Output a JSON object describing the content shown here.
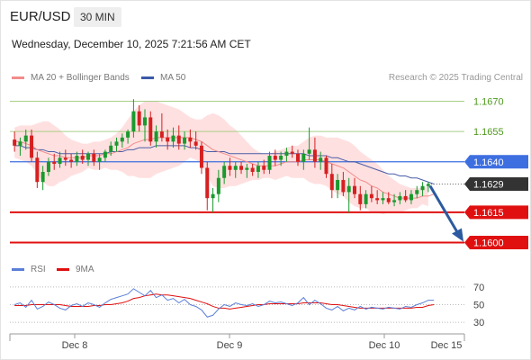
{
  "header": {
    "pair": "EUR/USD",
    "timeframe": "30 MIN",
    "date": "Wednesday, December 10, 2025 7:21:56 AM CET"
  },
  "legend": {
    "ma20": "MA 20 + Bollinger Bands",
    "ma50": "MA 50",
    "credit": "Research © 2025 Trading Central",
    "rsi": "RSI",
    "ma9": "9MA"
  },
  "colors": {
    "bull": "#1a9a2e",
    "bear": "#d62020",
    "ma20": "#f28b8b",
    "ma50": "#4a5ea8",
    "band": "#ffd6d6",
    "green_level": "#a7cf86",
    "blue_level": "#3d6fe0",
    "red_level": "#e01010",
    "current": "#333333",
    "arrow": "#2c5aa0",
    "rsi": "#5b7fd6",
    "rsi_ma": "#e01010"
  },
  "chart_data": [
    {
      "type": "candlestick",
      "title": "EUR/USD 30 MIN",
      "ylim": [
        1.1594,
        1.1676
      ],
      "x_ticks": [
        "Dec 8",
        "Dec 9",
        "Dec 10",
        "Dec 15"
      ],
      "levels": [
        {
          "price": 1.167,
          "label": "1.1670",
          "kind": "resistance-green"
        },
        {
          "price": 1.1655,
          "label": "1.1655",
          "kind": "resistance-green"
        },
        {
          "price": 1.164,
          "label": "1.1640",
          "kind": "pivot-blue"
        },
        {
          "price": 1.1629,
          "label": "1.1629",
          "kind": "current"
        },
        {
          "price": 1.1615,
          "label": "1.1615",
          "kind": "support-red"
        },
        {
          "price": 1.16,
          "label": "1.1600",
          "kind": "support-red"
        }
      ],
      "forecast": {
        "from": 1.1629,
        "to": 1.16
      },
      "candles": [
        {
          "o": 1.1651,
          "h": 1.1655,
          "l": 1.1645,
          "c": 1.1648
        },
        {
          "o": 1.1648,
          "h": 1.1652,
          "l": 1.1643,
          "c": 1.165
        },
        {
          "o": 1.165,
          "h": 1.1656,
          "l": 1.1646,
          "c": 1.1653
        },
        {
          "o": 1.1653,
          "h": 1.1656,
          "l": 1.164,
          "c": 1.1642
        },
        {
          "o": 1.1642,
          "h": 1.1645,
          "l": 1.1627,
          "c": 1.163
        },
        {
          "o": 1.163,
          "h": 1.1638,
          "l": 1.1626,
          "c": 1.1635
        },
        {
          "o": 1.1635,
          "h": 1.1642,
          "l": 1.1633,
          "c": 1.164
        },
        {
          "o": 1.164,
          "h": 1.1644,
          "l": 1.1636,
          "c": 1.1639
        },
        {
          "o": 1.1639,
          "h": 1.1645,
          "l": 1.1637,
          "c": 1.1642
        },
        {
          "o": 1.1642,
          "h": 1.1646,
          "l": 1.1638,
          "c": 1.1641
        },
        {
          "o": 1.1641,
          "h": 1.1644,
          "l": 1.1637,
          "c": 1.164
        },
        {
          "o": 1.164,
          "h": 1.1645,
          "l": 1.1638,
          "c": 1.1643
        },
        {
          "o": 1.1643,
          "h": 1.1646,
          "l": 1.1639,
          "c": 1.1641
        },
        {
          "o": 1.1641,
          "h": 1.1645,
          "l": 1.1638,
          "c": 1.1644
        },
        {
          "o": 1.1644,
          "h": 1.1646,
          "l": 1.1638,
          "c": 1.164
        },
        {
          "o": 1.164,
          "h": 1.1644,
          "l": 1.1636,
          "c": 1.1642
        },
        {
          "o": 1.1642,
          "h": 1.1646,
          "l": 1.164,
          "c": 1.1645
        },
        {
          "o": 1.1645,
          "h": 1.165,
          "l": 1.1643,
          "c": 1.1648
        },
        {
          "o": 1.1648,
          "h": 1.1652,
          "l": 1.1645,
          "c": 1.165
        },
        {
          "o": 1.165,
          "h": 1.1654,
          "l": 1.1647,
          "c": 1.1652
        },
        {
          "o": 1.1652,
          "h": 1.1656,
          "l": 1.1649,
          "c": 1.1655
        },
        {
          "o": 1.1655,
          "h": 1.1671,
          "l": 1.1652,
          "c": 1.1665
        },
        {
          "o": 1.1665,
          "h": 1.1668,
          "l": 1.1655,
          "c": 1.1658
        },
        {
          "o": 1.1658,
          "h": 1.1666,
          "l": 1.165,
          "c": 1.1662
        },
        {
          "o": 1.1662,
          "h": 1.1665,
          "l": 1.1648,
          "c": 1.165
        },
        {
          "o": 1.165,
          "h": 1.1658,
          "l": 1.1647,
          "c": 1.1655
        },
        {
          "o": 1.1655,
          "h": 1.1664,
          "l": 1.165,
          "c": 1.1652
        },
        {
          "o": 1.1652,
          "h": 1.1656,
          "l": 1.1646,
          "c": 1.165
        },
        {
          "o": 1.165,
          "h": 1.1657,
          "l": 1.1647,
          "c": 1.1653
        },
        {
          "o": 1.1653,
          "h": 1.1658,
          "l": 1.1646,
          "c": 1.1649
        },
        {
          "o": 1.1649,
          "h": 1.1655,
          "l": 1.1646,
          "c": 1.1652
        },
        {
          "o": 1.1652,
          "h": 1.1656,
          "l": 1.1647,
          "c": 1.165
        },
        {
          "o": 1.165,
          "h": 1.1655,
          "l": 1.1646,
          "c": 1.1648
        },
        {
          "o": 1.1648,
          "h": 1.165,
          "l": 1.1634,
          "c": 1.1637
        },
        {
          "o": 1.1637,
          "h": 1.164,
          "l": 1.1616,
          "c": 1.1622
        },
        {
          "o": 1.1622,
          "h": 1.1627,
          "l": 1.1615,
          "c": 1.1624
        },
        {
          "o": 1.1624,
          "h": 1.1636,
          "l": 1.162,
          "c": 1.1632
        },
        {
          "o": 1.1632,
          "h": 1.164,
          "l": 1.1629,
          "c": 1.1638
        },
        {
          "o": 1.1638,
          "h": 1.1642,
          "l": 1.1633,
          "c": 1.1636
        },
        {
          "o": 1.1636,
          "h": 1.164,
          "l": 1.1632,
          "c": 1.1638
        },
        {
          "o": 1.1638,
          "h": 1.164,
          "l": 1.1634,
          "c": 1.1636
        },
        {
          "o": 1.1636,
          "h": 1.1639,
          "l": 1.1632,
          "c": 1.1637
        },
        {
          "o": 1.1637,
          "h": 1.1639,
          "l": 1.1633,
          "c": 1.1635
        },
        {
          "o": 1.1635,
          "h": 1.164,
          "l": 1.1632,
          "c": 1.1638
        },
        {
          "o": 1.1638,
          "h": 1.1641,
          "l": 1.1634,
          "c": 1.1636
        },
        {
          "o": 1.1636,
          "h": 1.1645,
          "l": 1.1634,
          "c": 1.1643
        },
        {
          "o": 1.1643,
          "h": 1.1646,
          "l": 1.1638,
          "c": 1.1641
        },
        {
          "o": 1.1641,
          "h": 1.1645,
          "l": 1.1638,
          "c": 1.1643
        },
        {
          "o": 1.1643,
          "h": 1.1647,
          "l": 1.164,
          "c": 1.1645
        },
        {
          "o": 1.1645,
          "h": 1.1648,
          "l": 1.1642,
          "c": 1.1644
        },
        {
          "o": 1.1644,
          "h": 1.1646,
          "l": 1.1638,
          "c": 1.164
        },
        {
          "o": 1.164,
          "h": 1.1646,
          "l": 1.1636,
          "c": 1.1644
        },
        {
          "o": 1.1644,
          "h": 1.1657,
          "l": 1.1641,
          "c": 1.1646
        },
        {
          "o": 1.1646,
          "h": 1.1652,
          "l": 1.1637,
          "c": 1.164
        },
        {
          "o": 1.164,
          "h": 1.1645,
          "l": 1.1636,
          "c": 1.1642
        },
        {
          "o": 1.1642,
          "h": 1.1643,
          "l": 1.1632,
          "c": 1.1634
        },
        {
          "o": 1.1634,
          "h": 1.1639,
          "l": 1.1622,
          "c": 1.1626
        },
        {
          "o": 1.1626,
          "h": 1.1634,
          "l": 1.1622,
          "c": 1.1631
        },
        {
          "o": 1.1631,
          "h": 1.1635,
          "l": 1.1623,
          "c": 1.1625
        },
        {
          "o": 1.1625,
          "h": 1.1632,
          "l": 1.1615,
          "c": 1.1628
        },
        {
          "o": 1.1628,
          "h": 1.1632,
          "l": 1.1622,
          "c": 1.1624
        },
        {
          "o": 1.1624,
          "h": 1.1628,
          "l": 1.1616,
          "c": 1.1619
        },
        {
          "o": 1.1619,
          "h": 1.1626,
          "l": 1.1617,
          "c": 1.1624
        },
        {
          "o": 1.1624,
          "h": 1.1628,
          "l": 1.162,
          "c": 1.1622
        },
        {
          "o": 1.1622,
          "h": 1.1626,
          "l": 1.1619,
          "c": 1.1621
        },
        {
          "o": 1.1621,
          "h": 1.1625,
          "l": 1.1619,
          "c": 1.1622
        },
        {
          "o": 1.1622,
          "h": 1.1625,
          "l": 1.1619,
          "c": 1.162
        },
        {
          "o": 1.162,
          "h": 1.1624,
          "l": 1.1618,
          "c": 1.1621
        },
        {
          "o": 1.1621,
          "h": 1.1625,
          "l": 1.1619,
          "c": 1.1623
        },
        {
          "o": 1.1623,
          "h": 1.1626,
          "l": 1.162,
          "c": 1.1621
        },
        {
          "o": 1.1621,
          "h": 1.1626,
          "l": 1.1619,
          "c": 1.1624
        },
        {
          "o": 1.1624,
          "h": 1.1628,
          "l": 1.1622,
          "c": 1.1626
        },
        {
          "o": 1.1626,
          "h": 1.163,
          "l": 1.1623,
          "c": 1.1628
        },
        {
          "o": 1.1628,
          "h": 1.163,
          "l": 1.1625,
          "c": 1.1629
        }
      ],
      "ma20": [
        1.165,
        1.165,
        1.1649,
        1.1648,
        1.1646,
        1.1645,
        1.1644,
        1.1643,
        1.1643,
        1.1642,
        1.1642,
        1.1642,
        1.1642,
        1.1643,
        1.1643,
        1.1643,
        1.1644,
        1.1644,
        1.1645,
        1.1646,
        1.1647,
        1.1649,
        1.165,
        1.1651,
        1.1651,
        1.1652,
        1.1652,
        1.1652,
        1.1652,
        1.1652,
        1.1652,
        1.1652,
        1.1651,
        1.165,
        1.1648,
        1.1646,
        1.1645,
        1.1644,
        1.1643,
        1.1642,
        1.1641,
        1.164,
        1.1639,
        1.1638,
        1.1638,
        1.1638,
        1.1638,
        1.1639,
        1.164,
        1.164,
        1.164,
        1.1641,
        1.1641,
        1.1641,
        1.1641,
        1.164,
        1.1639,
        1.1638,
        1.1637,
        1.1635,
        1.1633,
        1.1631,
        1.163,
        1.1628,
        1.1627,
        1.1625,
        1.1624,
        1.1623,
        1.1622,
        1.1622,
        1.1622,
        1.1622,
        1.1623,
        1.1623,
        1.1624
      ],
      "bb_upper": [
        1.1657,
        1.1658,
        1.1658,
        1.1658,
        1.1659,
        1.166,
        1.166,
        1.1658,
        1.1656,
        1.1653,
        1.1651,
        1.165,
        1.1649,
        1.1649,
        1.165,
        1.165,
        1.1651,
        1.1652,
        1.1654,
        1.1657,
        1.1661,
        1.1665,
        1.1668,
        1.167,
        1.167,
        1.167,
        1.1669,
        1.1668,
        1.1667,
        1.1666,
        1.1664,
        1.1662,
        1.1661,
        1.1661,
        1.1663,
        1.1664,
        1.1663,
        1.1661,
        1.1658,
        1.1656,
        1.1653,
        1.165,
        1.1647,
        1.1645,
        1.1644,
        1.1644,
        1.1645,
        1.1646,
        1.1647,
        1.1648,
        1.1648,
        1.165,
        1.1652,
        1.1653,
        1.1653,
        1.1652,
        1.1652,
        1.1652,
        1.1651,
        1.165,
        1.1648,
        1.1645,
        1.1643,
        1.1641,
        1.1639,
        1.1636,
        1.1633,
        1.1631,
        1.1629,
        1.1628,
        1.1627,
        1.1627,
        1.1627,
        1.1628,
        1.1629
      ],
      "bb_lower": [
        1.1642,
        1.1641,
        1.164,
        1.1638,
        1.1634,
        1.163,
        1.1628,
        1.1628,
        1.163,
        1.1631,
        1.1633,
        1.1634,
        1.1635,
        1.1637,
        1.1636,
        1.1636,
        1.1637,
        1.1636,
        1.1636,
        1.1635,
        1.1633,
        1.1633,
        1.1632,
        1.1632,
        1.1632,
        1.1634,
        1.1635,
        1.1636,
        1.1637,
        1.1638,
        1.164,
        1.1642,
        1.1641,
        1.1639,
        1.1633,
        1.1628,
        1.1627,
        1.1627,
        1.1628,
        1.1628,
        1.1629,
        1.163,
        1.1631,
        1.1631,
        1.1632,
        1.1632,
        1.1631,
        1.1632,
        1.1633,
        1.1632,
        1.1632,
        1.1632,
        1.163,
        1.1629,
        1.1629,
        1.1628,
        1.1626,
        1.1624,
        1.1623,
        1.162,
        1.1618,
        1.1617,
        1.1617,
        1.1615,
        1.1615,
        1.1614,
        1.1615,
        1.1615,
        1.1615,
        1.1616,
        1.1617,
        1.1617,
        1.1619,
        1.1618,
        1.1619
      ],
      "ma50": [
        1.1648,
        1.1648,
        1.1647,
        1.1647,
        1.1646,
        1.1646,
        1.1645,
        1.1645,
        1.1644,
        1.1644,
        1.1644,
        1.1644,
        1.1644,
        1.1644,
        1.1644,
        1.1644,
        1.1644,
        1.1645,
        1.1645,
        1.1645,
        1.1646,
        1.1646,
        1.1647,
        1.1647,
        1.1647,
        1.1648,
        1.1648,
        1.1648,
        1.1648,
        1.1648,
        1.1648,
        1.1647,
        1.1647,
        1.1646,
        1.1645,
        1.1645,
        1.1645,
        1.1645,
        1.1644,
        1.1644,
        1.1644,
        1.1644,
        1.1644,
        1.1644,
        1.1644,
        1.1644,
        1.1644,
        1.1644,
        1.1644,
        1.1644,
        1.1644,
        1.1644,
        1.1643,
        1.1643,
        1.1643,
        1.1643,
        1.1642,
        1.1642,
        1.1641,
        1.164,
        1.164,
        1.1639,
        1.1638,
        1.1637,
        1.1636,
        1.1635,
        1.1634,
        1.1634,
        1.1633,
        1.1633,
        1.1632,
        1.1632,
        1.1631,
        1.163,
        1.1629
      ]
    },
    {
      "type": "line",
      "title": "RSI",
      "ylim": [
        22,
        78
      ],
      "y_ticks": [
        70,
        50,
        30
      ],
      "series": [
        {
          "name": "RSI",
          "values": [
            50,
            52,
            47,
            55,
            45,
            48,
            53,
            50,
            46,
            44,
            49,
            51,
            48,
            52,
            50,
            47,
            52,
            56,
            58,
            60,
            62,
            68,
            64,
            60,
            66,
            58,
            61,
            55,
            57,
            52,
            56,
            50,
            48,
            44,
            36,
            38,
            45,
            50,
            48,
            52,
            50,
            49,
            51,
            48,
            50,
            54,
            52,
            53,
            51,
            49,
            52,
            58,
            50,
            55,
            51,
            46,
            44,
            48,
            43,
            46,
            44,
            48,
            45,
            47,
            46,
            45,
            47,
            46,
            45,
            48,
            47,
            50,
            52,
            55,
            55
          ]
        },
        {
          "name": "9MA",
          "values": [
            49,
            49,
            49,
            50,
            50,
            50,
            50,
            50,
            50,
            49,
            48,
            48,
            48,
            48,
            49,
            49,
            50,
            50,
            51,
            52,
            54,
            57,
            58,
            60,
            61,
            62,
            61,
            61,
            60,
            59,
            58,
            57,
            55,
            53,
            51,
            48,
            46,
            46,
            45,
            46,
            47,
            48,
            49,
            50,
            50,
            51,
            51,
            51,
            51,
            51,
            51,
            52,
            52,
            52,
            52,
            51,
            50,
            50,
            49,
            48,
            47,
            46,
            46,
            46,
            46,
            46,
            46,
            46,
            46,
            46,
            46,
            47,
            47,
            49,
            50
          ]
        }
      ]
    }
  ]
}
